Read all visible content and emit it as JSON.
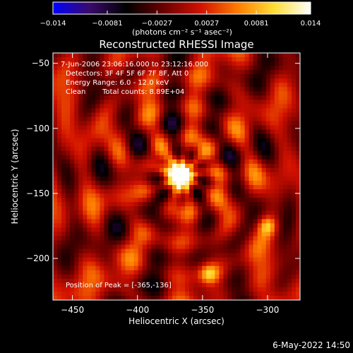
{
  "colorbar": {
    "tick_labels": [
      "−0.014",
      "−0.0081",
      "−0.0027",
      "0.0027",
      "0.0081",
      "0.014"
    ],
    "tick_values": [
      -0.014,
      -0.0081,
      -0.0027,
      0.0027,
      0.0081,
      0.014
    ],
    "unit_label": "(photons cm⁻² s⁻¹ asec⁻²)",
    "colormap": [
      "#0000ff",
      "#3a0a6a",
      "#000000",
      "#6a0000",
      "#d01000",
      "#ff7a00",
      "#ffdd33",
      "#ffffff"
    ]
  },
  "chart_data": {
    "type": "heatmap",
    "title": "Reconstructed RHESSI Image",
    "xlabel": "Heliocentric X (arcsec)",
    "ylabel": "Heliocentric Y (arcsec)",
    "xlim": [
      -465,
      -275
    ],
    "ylim": [
      -232,
      -42
    ],
    "x_ticks": [
      -450,
      -400,
      -350,
      -300
    ],
    "x_tick_labels": [
      "−450",
      "−400",
      "−350",
      "−300"
    ],
    "y_ticks": [
      -50,
      -100,
      -150,
      -200
    ],
    "y_tick_labels": [
      "−50",
      "−100",
      "−150",
      "−200"
    ],
    "value_range": [
      -0.014,
      0.014
    ],
    "peak": [
      -365,
      -136
    ],
    "secondary_sources": [
      [
        -300,
        -175
      ],
      [
        -345,
        -212
      ]
    ],
    "annotations": {
      "time_range": "7-Jun-2006 23:06:16.000 to 23:12:16.000",
      "detectors": "Detectors: 3F 4F 5F 6F 7F 8F, Att 0",
      "energy": "Energy Range: 6.0 - 12.0 keV",
      "clean_label": "Clean",
      "total_counts": "Total counts: 8.89E+04",
      "peak_label": "Position of Peak = [-365,-136]"
    }
  },
  "footer": {
    "date": "6-May-2022 14:50"
  }
}
